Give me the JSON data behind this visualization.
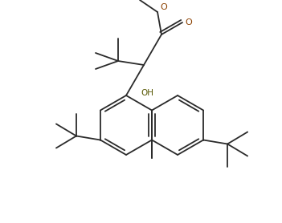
{
  "bg_color": "#ffffff",
  "line_color": "#2a2a2a",
  "line_width": 1.3,
  "figsize": [
    3.51,
    2.78
  ],
  "dpi": 100,
  "xlim": [
    0,
    351
  ],
  "ylim": [
    0,
    278
  ]
}
